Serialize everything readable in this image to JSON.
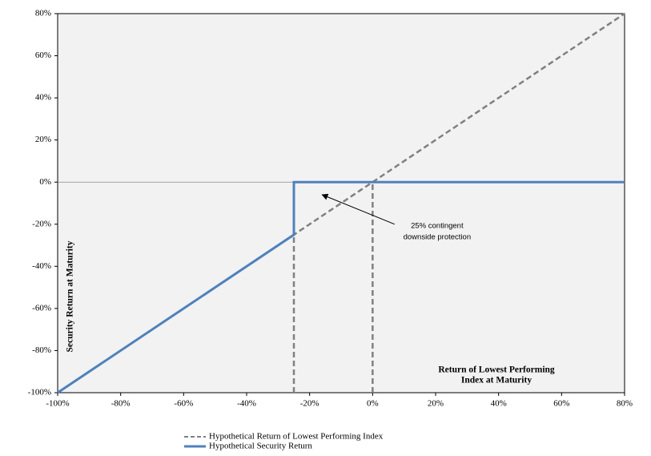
{
  "chart_data": {
    "type": "line",
    "x_label": [
      "Return of Lowest Performing",
      "Index at Maturity"
    ],
    "y_label": "Security Return at Maturity",
    "xlim": [
      -100,
      80
    ],
    "ylim": [
      -100,
      80
    ],
    "xticks": [
      {
        "value": -100,
        "label": "-100%"
      },
      {
        "value": -80,
        "label": "-80%"
      },
      {
        "value": -60,
        "label": "-60%"
      },
      {
        "value": -40,
        "label": "-40%"
      },
      {
        "value": -20,
        "label": "-20%"
      },
      {
        "value": 0,
        "label": "0%"
      },
      {
        "value": 20,
        "label": "20%"
      },
      {
        "value": 40,
        "label": "40%"
      },
      {
        "value": 60,
        "label": "60%"
      },
      {
        "value": 80,
        "label": "80%"
      }
    ],
    "yticks": [
      {
        "value": -100,
        "label": "-100%"
      },
      {
        "value": -80,
        "label": "-80%"
      },
      {
        "value": -60,
        "label": "-60%"
      },
      {
        "value": -40,
        "label": "-40%"
      },
      {
        "value": -20,
        "label": "-20%"
      },
      {
        "value": 0,
        "label": "0%"
      },
      {
        "value": 20,
        "label": "20%"
      },
      {
        "value": 40,
        "label": "40%"
      },
      {
        "value": 60,
        "label": "60%"
      },
      {
        "value": 80,
        "label": "80%"
      }
    ],
    "zero_line": true,
    "series": [
      {
        "name": "Hypothetical Return of Lowest Performing Index",
        "color": "#808080",
        "dashed": true,
        "x": [
          -100,
          80
        ],
        "values": [
          -100,
          80
        ]
      },
      {
        "name": "Hypothetical Security Return",
        "color": "#4f81bd",
        "dashed": false,
        "x": [
          -100,
          -25,
          -25,
          80
        ],
        "values": [
          -100,
          -25,
          0,
          0
        ]
      }
    ],
    "reference_lines": [
      {
        "color": "#808080",
        "x": [
          -25,
          -25
        ],
        "values": [
          -100,
          -25
        ]
      },
      {
        "color": "#808080",
        "x": [
          0,
          0
        ],
        "values": [
          -100,
          0
        ]
      }
    ],
    "annotation": {
      "text": [
        "25% contingent",
        "downside protection"
      ],
      "xy": [
        -16,
        -6
      ],
      "xytext": [
        7,
        -20
      ]
    },
    "legend": "bottom"
  }
}
